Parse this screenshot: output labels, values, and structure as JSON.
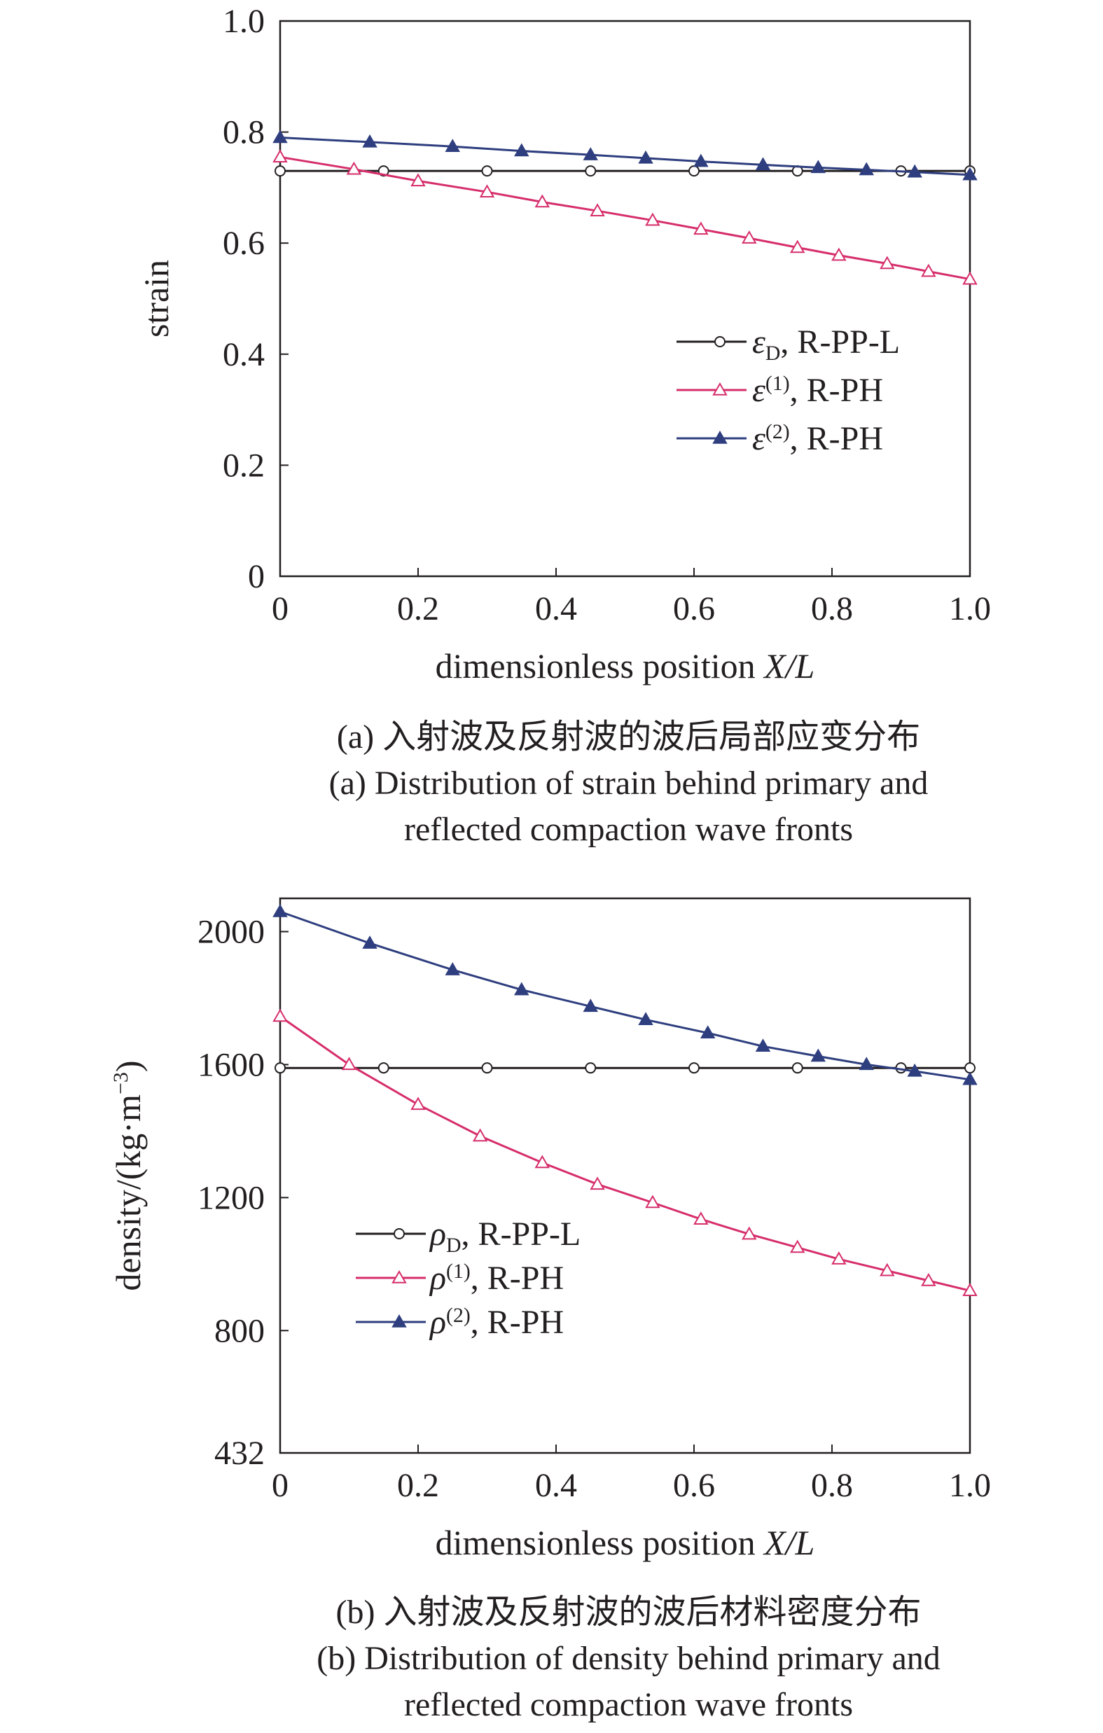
{
  "charts": [
    {
      "type": "line",
      "panel": "a",
      "xlabel_main": "dimensionless position ",
      "xlabel_var": "X/L",
      "ylabel": "strain",
      "xlim": [
        0,
        1.0
      ],
      "ylim": [
        0,
        1.0
      ],
      "xticks": [
        "0",
        "0.2",
        "0.4",
        "0.6",
        "0.8",
        "1.0"
      ],
      "yticks": [
        "0",
        "0.2",
        "0.4",
        "0.6",
        "0.8",
        "1.0"
      ],
      "xtick_values": [
        0,
        0.2,
        0.4,
        0.6,
        0.8,
        1.0
      ],
      "ytick_values": [
        0,
        0.2,
        0.4,
        0.6,
        0.8,
        1.0
      ],
      "legend_position": "center-right",
      "caption_cn": "(a) 入射波及反射波的波后局部应变分布",
      "caption_en_1": "(a) Distribution of strain behind primary and",
      "caption_en_2": "reflected compaction wave fronts",
      "series": [
        {
          "symbol": "ε",
          "sub": "D",
          "sup": "",
          "suffix": ", R-PP-L",
          "color": "#231f20",
          "marker": "open-circle",
          "x": [
            0,
            0.15,
            0.3,
            0.45,
            0.6,
            0.75,
            0.9,
            1.0
          ],
          "y": [
            0.73,
            0.73,
            0.73,
            0.73,
            0.73,
            0.73,
            0.73,
            0.73
          ]
        },
        {
          "symbol": "ε",
          "sub": "",
          "sup": "(1)",
          "suffix": ", R-PH",
          "color": "#d62e6b",
          "marker": "open-triangle",
          "x": [
            0,
            0.107,
            0.2,
            0.3,
            0.38,
            0.46,
            0.54,
            0.61,
            0.68,
            0.75,
            0.81,
            0.88,
            0.94,
            1.0
          ],
          "y": [
            0.755,
            0.733,
            0.712,
            0.692,
            0.674,
            0.658,
            0.641,
            0.625,
            0.609,
            0.592,
            0.578,
            0.563,
            0.549,
            0.535
          ]
        },
        {
          "symbol": "ε",
          "sub": "",
          "sup": "(2)",
          "suffix": ", R-PH",
          "color": "#2e3e7e",
          "marker": "filled-triangle",
          "x": [
            0,
            0.13,
            0.25,
            0.35,
            0.45,
            0.53,
            0.61,
            0.7,
            0.78,
            0.85,
            0.92,
            1.0
          ],
          "y": [
            0.79,
            0.782,
            0.774,
            0.766,
            0.759,
            0.753,
            0.747,
            0.741,
            0.736,
            0.732,
            0.728,
            0.723
          ]
        }
      ]
    },
    {
      "type": "line",
      "panel": "b",
      "xlabel_main": "dimensionless position ",
      "xlabel_var": "X/L",
      "ylabel": "density/(kg·m",
      "ylabel_sup": "−3",
      "ylabel_end": ")",
      "xlim": [
        0,
        1.0
      ],
      "ylim": [
        432,
        2100
      ],
      "xticks": [
        "0",
        "0.2",
        "0.4",
        "0.6",
        "0.8",
        "1.0"
      ],
      "yticks": [
        "432",
        "800",
        "1200",
        "1600",
        "2000"
      ],
      "xtick_values": [
        0,
        0.2,
        0.4,
        0.6,
        0.8,
        1.0
      ],
      "ytick_values": [
        432,
        800,
        1200,
        1600,
        2000
      ],
      "legend_position": "lower-left",
      "caption_cn": "(b) 入射波及反射波的波后材料密度分布",
      "caption_en_1": "(b) Distribution of density behind primary and",
      "caption_en_2": "reflected compaction wave fronts",
      "series": [
        {
          "symbol": "ρ",
          "sub": "D",
          "sup": "",
          "suffix": ", R-PP-L",
          "color": "#231f20",
          "marker": "open-circle",
          "x": [
            0,
            0.15,
            0.3,
            0.45,
            0.6,
            0.75,
            0.9,
            1.0
          ],
          "y": [
            1590,
            1590,
            1590,
            1590,
            1590,
            1590,
            1590,
            1590
          ]
        },
        {
          "symbol": "ρ",
          "sub": "",
          "sup": "(1)",
          "suffix": ", R-PH",
          "color": "#d62e6b",
          "marker": "open-triangle",
          "x": [
            0,
            0.1,
            0.2,
            0.29,
            0.38,
            0.46,
            0.54,
            0.61,
            0.68,
            0.75,
            0.81,
            0.88,
            0.94,
            1.0
          ],
          "y": [
            1745,
            1600,
            1480,
            1385,
            1305,
            1240,
            1185,
            1135,
            1090,
            1050,
            1015,
            980,
            950,
            920
          ]
        },
        {
          "symbol": "ρ",
          "sub": "",
          "sup": "(2)",
          "suffix": ", R-PH",
          "color": "#2e3e7e",
          "marker": "filled-triangle",
          "x": [
            0,
            0.13,
            0.25,
            0.35,
            0.45,
            0.53,
            0.62,
            0.7,
            0.78,
            0.85,
            0.92,
            1.0
          ],
          "y": [
            2060,
            1965,
            1885,
            1825,
            1775,
            1735,
            1695,
            1655,
            1625,
            1600,
            1580,
            1555
          ]
        }
      ]
    }
  ]
}
